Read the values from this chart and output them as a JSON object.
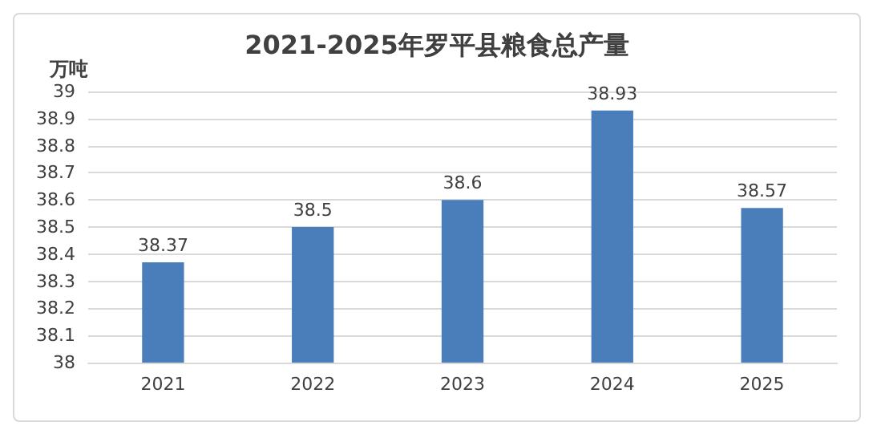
{
  "chart_data": {
    "type": "bar",
    "title": "2021-2025年罗平县粮食总产量",
    "ylabel": "万吨",
    "categories": [
      "2021",
      "2022",
      "2023",
      "2024",
      "2025"
    ],
    "values": [
      38.37,
      38.5,
      38.6,
      38.93,
      38.57
    ],
    "color": "#4a7ebb",
    "ylim": [
      38,
      39
    ],
    "yticks": [
      38,
      38.1,
      38.2,
      38.3,
      38.4,
      38.5,
      38.6,
      38.7,
      38.8,
      38.9,
      39
    ],
    "grid": "y",
    "data_labels": true
  }
}
